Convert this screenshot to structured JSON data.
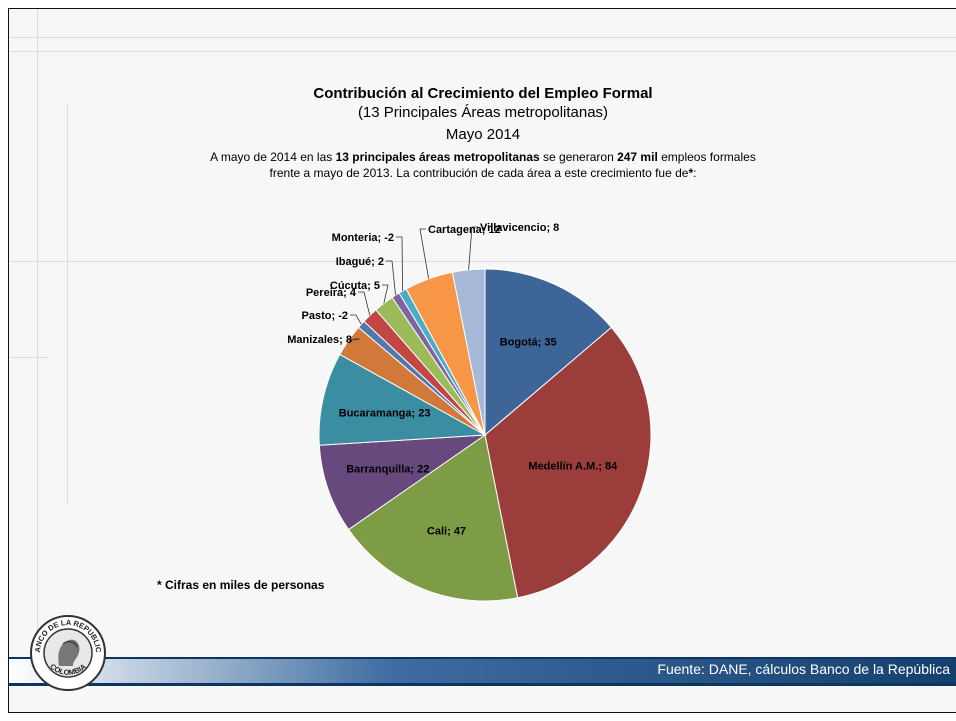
{
  "chart_data": {
    "type": "pie",
    "title": "Contribución al Crecimiento del Empleo Formal",
    "subtitle": "(13 Principales Áreas metropolitanas)",
    "period": "Mayo 2014",
    "description": {
      "line1_a": "A mayo de 2014 en las ",
      "line1_b": "13 principales áreas metropolitanas",
      "line1_c": " se generaron ",
      "line1_d": "247 mil",
      "line1_e": " empleos formales",
      "line2_a": "frente a mayo de 2013. La contribución de cada área a este crecimiento fue de",
      "line2_b": "*",
      "line2_c": ":"
    },
    "footnote": "* Cifras en miles de personas",
    "slices": [
      {
        "label": "Bogotá",
        "value": 35,
        "color": "#3e6598"
      },
      {
        "label": "Medellín A.M.",
        "value": 84,
        "color": "#9b3e3b"
      },
      {
        "label": "Cali",
        "value": 47,
        "color": "#7e9c46"
      },
      {
        "label": "Barranquilla",
        "value": 22,
        "color": "#67497e"
      },
      {
        "label": "Bucaramanga",
        "value": 23,
        "color": "#3b8ea2"
      },
      {
        "label": "Manizales",
        "value": 8,
        "color": "#d1793a"
      },
      {
        "label": "Pasto",
        "value": -2,
        "color": "#4f78ad"
      },
      {
        "label": "Pereira",
        "value": 4,
        "color": "#c24643"
      },
      {
        "label": "Cúcuta",
        "value": 5,
        "color": "#9bbb59"
      },
      {
        "label": "Ibagué",
        "value": 2,
        "color": "#8064a2"
      },
      {
        "label": "Montería",
        "value": -2,
        "color": "#4bacc6"
      },
      {
        "label": "Cartagena",
        "value": 12,
        "color": "#f79646"
      },
      {
        "label": "Villavicencio",
        "value": 8,
        "color": "#a7b9d9"
      }
    ],
    "labels": [
      "Bogotá; 35",
      "Medellín A.M.; 84",
      "Cali; 47",
      "Barranquilla; 22",
      "Bucaramanga; 23",
      "Manizales; 8",
      "Pasto; -2",
      "Pereira; 4",
      "Cúcuta; 5",
      "Ibagué; 2",
      "Monteria; -2",
      "Cartagena; 12",
      "Villavicencio; 8"
    ]
  },
  "footer": {
    "source": "Fuente: DANE, cálculos Banco de la República",
    "seal_text_top": "BANCO DE LA REPUBLICA",
    "seal_text_bottom": "COLOMBIA"
  }
}
